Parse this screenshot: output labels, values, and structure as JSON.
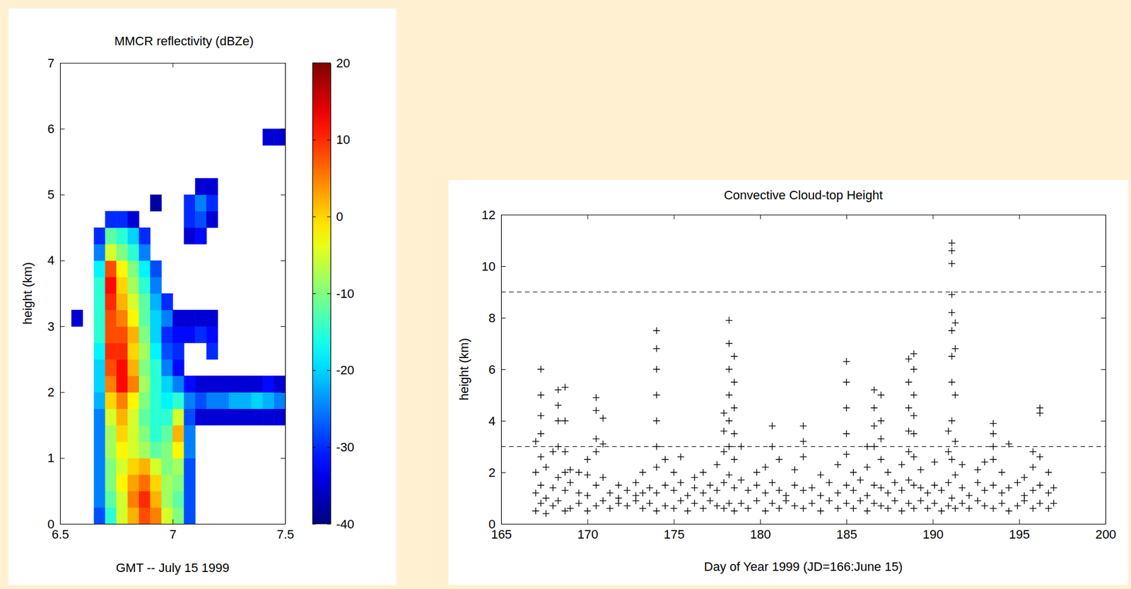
{
  "chart_data": [
    {
      "type": "heatmap",
      "title": "MMCR reflectivity (dBZe)",
      "x_label": "GMT -- July 15 1999",
      "y_label": "height (km)",
      "xlim": [
        6.5,
        7.5
      ],
      "xticks": [
        6.5,
        7,
        7.5
      ],
      "ylim": [
        0,
        7
      ],
      "yticks": [
        0,
        1,
        2,
        3,
        4,
        5,
        6,
        7
      ],
      "x": [
        6.525,
        6.575,
        6.625,
        6.675,
        6.725,
        6.775,
        6.825,
        6.875,
        6.925,
        6.975,
        7.025,
        7.075,
        7.125,
        7.175,
        7.225,
        7.275,
        7.325,
        7.375,
        7.425,
        7.475
      ],
      "y": [
        0.125,
        0.375,
        0.625,
        0.875,
        1.125,
        1.375,
        1.625,
        1.875,
        2.125,
        2.375,
        2.625,
        2.875,
        3.125,
        3.375,
        3.625,
        3.875,
        4.125,
        4.375,
        4.625,
        4.875,
        5.125,
        5.375,
        5.625,
        5.875
      ],
      "z": [
        [
          null,
          null,
          null,
          -28,
          -15,
          -5,
          2,
          8,
          5,
          -5,
          -10,
          -28,
          null,
          null,
          null,
          null,
          null,
          null,
          null,
          null
        ],
        [
          null,
          null,
          null,
          -25,
          -12,
          -5,
          5,
          10,
          2,
          -8,
          -12,
          -28,
          null,
          null,
          null,
          null,
          null,
          null,
          null,
          null
        ],
        [
          null,
          null,
          null,
          -25,
          -10,
          -2,
          3,
          6,
          0,
          -8,
          -10,
          -28,
          null,
          null,
          null,
          null,
          null,
          null,
          null,
          null
        ],
        [
          null,
          null,
          null,
          -25,
          -10,
          -5,
          0,
          2,
          -5,
          -10,
          -8,
          -28,
          null,
          null,
          null,
          null,
          null,
          null,
          null,
          null
        ],
        [
          null,
          null,
          null,
          -25,
          -8,
          -2,
          -5,
          -8,
          -12,
          -10,
          -2,
          -25,
          null,
          null,
          null,
          null,
          null,
          null,
          null,
          null
        ],
        [
          null,
          null,
          null,
          -25,
          -8,
          0,
          -5,
          -10,
          -15,
          -12,
          2,
          -25,
          null,
          null,
          null,
          null,
          null,
          null,
          null,
          null
        ],
        [
          null,
          null,
          null,
          -25,
          -5,
          2,
          -5,
          -12,
          -15,
          -15,
          -5,
          -28,
          -35,
          -35,
          -35,
          -35,
          -35,
          -35,
          -35,
          -35
        ],
        [
          null,
          null,
          null,
          -22,
          0,
          5,
          -2,
          -10,
          -15,
          -18,
          -15,
          -25,
          -28,
          -25,
          -25,
          -22,
          -22,
          -20,
          -22,
          -25
        ],
        [
          null,
          null,
          null,
          -20,
          5,
          12,
          5,
          -8,
          -15,
          -20,
          -25,
          -32,
          -35,
          -35,
          -35,
          -35,
          -35,
          -35,
          -32,
          -35
        ],
        [
          null,
          null,
          null,
          -20,
          8,
          12,
          2,
          -10,
          -15,
          -25,
          -32,
          null,
          null,
          null,
          null,
          null,
          null,
          null,
          null,
          null
        ],
        [
          null,
          null,
          null,
          -18,
          10,
          10,
          0,
          -8,
          -18,
          -28,
          -30,
          null,
          null,
          -30,
          null,
          null,
          null,
          null,
          null,
          null
        ],
        [
          null,
          null,
          null,
          -15,
          8,
          8,
          2,
          -10,
          -20,
          -30,
          -32,
          -32,
          -30,
          -32,
          null,
          null,
          null,
          null,
          null,
          null
        ],
        [
          null,
          -35,
          null,
          -15,
          8,
          5,
          -2,
          -12,
          -20,
          -25,
          -35,
          -35,
          -35,
          -35,
          null,
          null,
          null,
          null,
          null,
          null
        ],
        [
          null,
          null,
          null,
          -15,
          10,
          2,
          -5,
          -12,
          -22,
          -30,
          null,
          null,
          null,
          null,
          null,
          null,
          null,
          null,
          null,
          null
        ],
        [
          null,
          null,
          null,
          -15,
          12,
          0,
          -8,
          -15,
          -25,
          null,
          null,
          null,
          null,
          null,
          null,
          null,
          null,
          null,
          null,
          null
        ],
        [
          null,
          null,
          null,
          -18,
          8,
          -2,
          -10,
          -18,
          -28,
          null,
          null,
          null,
          null,
          null,
          null,
          null,
          null,
          null,
          null,
          null
        ],
        [
          null,
          null,
          null,
          -25,
          -5,
          -10,
          -15,
          -25,
          null,
          null,
          null,
          null,
          null,
          null,
          null,
          null,
          null,
          null,
          null,
          null
        ],
        [
          null,
          null,
          null,
          -30,
          -12,
          -15,
          -20,
          -30,
          null,
          null,
          null,
          -35,
          -32,
          null,
          null,
          null,
          null,
          null,
          null,
          null
        ],
        [
          null,
          null,
          null,
          null,
          -30,
          -30,
          -35,
          null,
          null,
          null,
          null,
          -30,
          -28,
          -35,
          null,
          null,
          null,
          null,
          null,
          null
        ],
        [
          null,
          null,
          null,
          null,
          null,
          null,
          null,
          null,
          -38,
          null,
          null,
          -30,
          -25,
          -30,
          null,
          null,
          null,
          null,
          null,
          null
        ],
        [
          null,
          null,
          null,
          null,
          null,
          null,
          null,
          null,
          null,
          null,
          null,
          null,
          -35,
          -35,
          null,
          null,
          null,
          null,
          null,
          null
        ],
        [
          null,
          null,
          null,
          null,
          null,
          null,
          null,
          null,
          null,
          null,
          null,
          null,
          null,
          null,
          null,
          null,
          null,
          null,
          null,
          null
        ],
        [
          null,
          null,
          null,
          null,
          null,
          null,
          null,
          null,
          null,
          null,
          null,
          null,
          null,
          null,
          null,
          null,
          null,
          null,
          null,
          null
        ],
        [
          null,
          null,
          null,
          null,
          null,
          null,
          null,
          null,
          null,
          null,
          null,
          null,
          null,
          null,
          null,
          null,
          null,
          null,
          -35,
          -35
        ]
      ],
      "colorbar": {
        "range": [
          -40,
          20
        ],
        "ticks": [
          -40,
          -30,
          -20,
          -10,
          0,
          10,
          20
        ]
      }
    },
    {
      "type": "scatter",
      "title": "Convective Cloud-top Height",
      "x_label": "Day of Year 1999 (JD=166:June 15)",
      "y_label": "height (km)",
      "xlim": [
        165,
        200
      ],
      "xticks": [
        165,
        170,
        175,
        180,
        185,
        190,
        195,
        200
      ],
      "ylim": [
        0,
        12
      ],
      "yticks": [
        0,
        2,
        4,
        6,
        8,
        10,
        12
      ],
      "marker": "plus",
      "color": "#000000",
      "reference_lines": [
        {
          "y": 3,
          "line_style": "dashed"
        },
        {
          "y": 9,
          "line_style": "dashed"
        }
      ],
      "x": [
        167,
        167,
        167,
        167,
        167.3,
        167.3,
        167.3,
        167.3,
        167.3,
        167.3,
        167.3,
        167.6,
        167.6,
        167.6,
        168,
        168,
        168,
        168.3,
        168.3,
        168.3,
        168.3,
        168.3,
        168.3,
        168.7,
        168.7,
        168.7,
        168.7,
        168.7,
        168.7,
        169,
        169,
        169,
        169.5,
        169.5,
        169.5,
        170,
        170,
        170,
        170,
        170.5,
        170.5,
        170.5,
        170.5,
        170.5,
        170.5,
        170.9,
        170.9,
        170.9,
        170.9,
        171.3,
        171.3,
        171.8,
        171.8,
        171.8,
        172.3,
        172.3,
        172.8,
        172.8,
        172.8,
        173.2,
        173.2,
        173.2,
        173.6,
        173.6,
        174,
        174,
        174,
        174,
        174,
        174,
        174,
        174,
        174,
        174.5,
        174.5,
        174.5,
        175,
        175,
        175,
        175.4,
        175.4,
        175.4,
        175.8,
        175.8,
        176.2,
        176.2,
        176.2,
        176.7,
        176.7,
        176.7,
        177.1,
        177.1,
        177.5,
        177.5,
        177.5,
        177.9,
        177.9,
        177.9,
        177.9,
        177.9,
        178.2,
        178.2,
        178.2,
        178.2,
        178.2,
        178.2,
        178.2,
        178.2,
        178.5,
        178.5,
        178.5,
        178.5,
        178.5,
        178.5,
        178.5,
        178.9,
        178.9,
        178.9,
        179.3,
        179.3,
        179.8,
        179.8,
        179.8,
        180.3,
        180.3,
        180.3,
        180.7,
        180.7,
        180.7,
        180.7,
        181.1,
        181.1,
        181.1,
        181.5,
        181.5,
        182,
        182,
        182,
        182.5,
        182.5,
        182.5,
        182.5,
        182.5,
        183,
        183,
        183.5,
        183.5,
        183.5,
        184,
        184,
        184.5,
        184.5,
        184.5,
        185,
        185,
        185,
        185,
        185,
        185,
        185,
        185.4,
        185.4,
        185.4,
        185.8,
        185.8,
        186.2,
        186.2,
        186.2,
        186.2,
        186.6,
        186.6,
        186.6,
        186.6,
        186.6,
        186.6,
        187,
        187,
        187,
        187,
        187,
        187,
        187.4,
        187.4,
        187.4,
        187.8,
        187.8,
        188.2,
        188.2,
        188.2,
        188.6,
        188.6,
        188.6,
        188.6,
        188.6,
        188.6,
        188.6,
        188.9,
        188.9,
        188.9,
        188.9,
        188.9,
        188.9,
        188.9,
        188.9,
        189.3,
        189.3,
        189.3,
        189.7,
        189.7,
        190.1,
        190.1,
        190.1,
        190.5,
        190.5,
        190.9,
        190.9,
        190.9,
        190.9,
        191.1,
        191.1,
        191.1,
        191.1,
        191.1,
        191.1,
        191.1,
        191.1,
        191.1,
        191.1,
        191.1,
        191.3,
        191.3,
        191.3,
        191.3,
        191.3,
        191.3,
        191.7,
        191.7,
        191.7,
        192.1,
        192.1,
        192.6,
        192.6,
        192.6,
        193,
        193,
        193,
        193.5,
        193.5,
        193.5,
        193.5,
        193.5,
        193.5,
        194,
        194,
        194,
        194.4,
        194.4,
        194.4,
        194.9,
        194.9,
        195.3,
        195.3,
        195.3,
        195.8,
        195.8,
        195.8,
        195.8,
        196.2,
        196.2,
        196.2,
        196.2,
        196.2,
        196.7,
        196.7,
        196.7,
        197,
        197
      ],
      "values": [
        0.5,
        1.2,
        2.0,
        3.2,
        0.8,
        1.5,
        2.6,
        3.5,
        4.2,
        5.0,
        6.0,
        0.4,
        1.0,
        2.2,
        0.7,
        1.4,
        2.8,
        0.9,
        1.8,
        3.0,
        4.0,
        4.6,
        5.2,
        0.5,
        1.3,
        2.0,
        2.8,
        4.0,
        5.3,
        0.6,
        1.6,
        2.1,
        0.8,
        1.2,
        2.0,
        0.5,
        1.1,
        1.9,
        2.5,
        0.7,
        1.5,
        2.8,
        3.3,
        4.4,
        4.9,
        0.9,
        1.8,
        3.1,
        4.1,
        0.6,
        1.2,
        0.8,
        1.0,
        1.5,
        0.7,
        1.3,
        0.9,
        1.1,
        1.6,
        0.6,
        1.2,
        2.0,
        0.8,
        1.4,
        0.5,
        1.2,
        2.2,
        3.0,
        4.0,
        5.0,
        6.0,
        6.8,
        7.5,
        0.7,
        1.5,
        2.5,
        0.6,
        1.3,
        2.0,
        0.9,
        1.6,
        2.6,
        0.5,
        1.1,
        0.8,
        1.4,
        1.8,
        0.6,
        1.2,
        2.0,
        0.9,
        1.5,
        0.7,
        1.3,
        2.3,
        0.6,
        1.6,
        2.8,
        3.6,
        4.3,
        0.8,
        1.9,
        3.0,
        4.0,
        5.0,
        6.0,
        7.0,
        7.9,
        0.5,
        1.4,
        2.5,
        3.5,
        4.5,
        5.5,
        6.5,
        0.8,
        1.7,
        3.0,
        0.6,
        1.3,
        0.9,
        1.5,
        2.0,
        0.5,
        1.2,
        2.2,
        0.8,
        1.6,
        3.0,
        3.8,
        0.6,
        1.3,
        2.5,
        0.9,
        1.1,
        0.7,
        1.5,
        2.1,
        0.6,
        1.3,
        2.6,
        3.2,
        3.8,
        0.8,
        1.4,
        0.5,
        1.1,
        1.9,
        0.9,
        1.6,
        0.6,
        1.2,
        2.3,
        0.8,
        1.5,
        2.7,
        3.5,
        4.5,
        5.5,
        6.3,
        0.6,
        1.3,
        2.0,
        0.9,
        1.7,
        0.5,
        1.1,
        2.2,
        3.0,
        0.8,
        1.5,
        3.0,
        3.8,
        4.5,
        5.2,
        0.7,
        1.4,
        2.5,
        3.3,
        4.0,
        5.0,
        0.6,
        1.2,
        2.0,
        0.9,
        1.6,
        0.5,
        1.3,
        2.3,
        0.8,
        1.7,
        2.8,
        3.6,
        4.5,
        5.5,
        6.4,
        0.6,
        1.5,
        2.6,
        3.5,
        4.2,
        5.0,
        6.0,
        6.6,
        0.9,
        1.4,
        2.1,
        0.6,
        1.2,
        0.8,
        1.5,
        2.4,
        0.5,
        1.3,
        0.7,
        1.6,
        2.8,
        3.6,
        1.0,
        2.5,
        4.0,
        5.5,
        6.5,
        7.5,
        8.2,
        8.9,
        10.1,
        10.6,
        10.9,
        0.6,
        1.9,
        3.2,
        5.0,
        6.8,
        7.8,
        0.8,
        1.4,
        2.3,
        0.6,
        1.1,
        0.9,
        1.6,
        2.1,
        0.7,
        1.3,
        2.4,
        0.6,
        1.5,
        2.5,
        3.0,
        3.5,
        3.9,
        0.8,
        1.2,
        2.0,
        0.5,
        1.4,
        3.1,
        0.7,
        1.6,
        0.9,
        1.1,
        1.8,
        0.6,
        1.3,
        2.2,
        2.8,
        0.8,
        1.5,
        2.6,
        4.3,
        4.5,
        0.6,
        1.2,
        2.0,
        0.8,
        1.4
      ]
    }
  ]
}
